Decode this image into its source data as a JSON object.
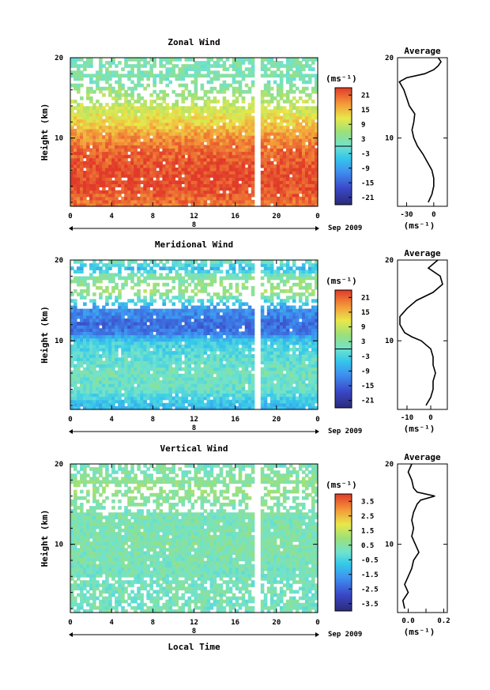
{
  "xlabel": "Local Time",
  "date_label": "Sep 2009",
  "day_label": "8",
  "cbar_units": "(ms⁻¹)",
  "avg_units": "(ms⁻¹)",
  "chart_data": [
    {
      "type": "heatmap",
      "title": "Zonal Wind",
      "ylabel": "Height (km)",
      "xlabel": "",
      "x_ticks": [
        "0",
        "4",
        "8",
        "12",
        "16",
        "20",
        "0"
      ],
      "xlim": [
        0,
        24
      ],
      "y_ticks": [
        "10",
        "20"
      ],
      "ylim": [
        1.5,
        20
      ],
      "colorbar": {
        "units": "(ms⁻¹)",
        "ticks": [
          "21",
          "15",
          "9",
          "3",
          "-3",
          "-9",
          "-15",
          "-21"
        ],
        "range": [
          -24,
          24
        ]
      },
      "profile_mean": [
        [
          2,
          20
        ],
        [
          4,
          23
        ],
        [
          6,
          23
        ],
        [
          8,
          21
        ],
        [
          10,
          18
        ],
        [
          12,
          13
        ],
        [
          14,
          9
        ],
        [
          16,
          5
        ],
        [
          17,
          2
        ]
      ],
      "average": {
        "title": "Average",
        "xlabel": "(ms⁻¹)",
        "x_ticks": [
          "-30",
          "0"
        ],
        "xlim": [
          -40,
          15
        ],
        "y_ticks": [
          "10",
          "20"
        ],
        "profile": [
          [
            -6,
            2
          ],
          [
            -2,
            3
          ],
          [
            0,
            4
          ],
          [
            0,
            5
          ],
          [
            -2,
            6
          ],
          [
            -7,
            7
          ],
          [
            -12,
            8
          ],
          [
            -18,
            9
          ],
          [
            -22,
            10
          ],
          [
            -24,
            11
          ],
          [
            -22,
            12
          ],
          [
            -21,
            13
          ],
          [
            -27,
            14
          ],
          [
            -30,
            15
          ],
          [
            -33,
            16
          ],
          [
            -38,
            17
          ],
          [
            -30,
            17.5
          ],
          [
            -10,
            18
          ],
          [
            0,
            18.5
          ],
          [
            5,
            19
          ],
          [
            8,
            19.5
          ],
          [
            5,
            20
          ]
        ]
      }
    },
    {
      "type": "heatmap",
      "title": "Meridional Wind",
      "ylabel": "Height (km)",
      "xlabel": "",
      "x_ticks": [
        "0",
        "4",
        "8",
        "12",
        "16",
        "20",
        "0"
      ],
      "xlim": [
        0,
        24
      ],
      "y_ticks": [
        "10",
        "20"
      ],
      "ylim": [
        1.5,
        20
      ],
      "colorbar": {
        "units": "(ms⁻¹)",
        "ticks": [
          "21",
          "15",
          "9",
          "3",
          "-3",
          "-9",
          "-15",
          "-21"
        ],
        "range": [
          -24,
          24
        ]
      },
      "profile_mean": [
        [
          2,
          -6
        ],
        [
          4,
          0
        ],
        [
          6,
          1
        ],
        [
          8,
          -1
        ],
        [
          10,
          -4
        ],
        [
          11,
          -12
        ],
        [
          12,
          -14
        ],
        [
          14,
          -10
        ],
        [
          16,
          6
        ],
        [
          18,
          3
        ],
        [
          19,
          -6
        ],
        [
          20,
          2
        ]
      ],
      "average": {
        "title": "Average",
        "xlabel": "(ms⁻¹)",
        "x_ticks": [
          "-10",
          "0"
        ],
        "xlim": [
          -14,
          7
        ],
        "y_ticks": [
          "10",
          "20"
        ],
        "profile": [
          [
            -2,
            2
          ],
          [
            0,
            3
          ],
          [
            1,
            4
          ],
          [
            1,
            5
          ],
          [
            2,
            6
          ],
          [
            1,
            7
          ],
          [
            1,
            8
          ],
          [
            0,
            9
          ],
          [
            -2,
            9.5
          ],
          [
            -4,
            10
          ],
          [
            -8,
            10.5
          ],
          [
            -11,
            11
          ],
          [
            -13,
            12
          ],
          [
            -13,
            13
          ],
          [
            -10,
            14
          ],
          [
            -6,
            15
          ],
          [
            1,
            16
          ],
          [
            5,
            17
          ],
          [
            4,
            18
          ],
          [
            -1,
            19
          ],
          [
            3,
            20
          ]
        ]
      }
    },
    {
      "type": "heatmap",
      "title": "Vertical Wind",
      "ylabel": "Height (km)",
      "xlabel": "Local Time",
      "x_ticks": [
        "0",
        "4",
        "8",
        "12",
        "16",
        "20",
        "0"
      ],
      "xlim": [
        0,
        24
      ],
      "y_ticks": [
        "10",
        "20"
      ],
      "ylim": [
        1.5,
        20
      ],
      "colorbar": {
        "units": "(ms⁻¹)",
        "ticks": [
          "3.5",
          "2.5",
          "1.5",
          "0.5",
          "-0.5",
          "-1.5",
          "-2.5",
          "-3.5"
        ],
        "range": [
          -4,
          4
        ]
      },
      "profile_mean": [
        [
          2,
          0.2
        ],
        [
          6,
          0.2
        ],
        [
          10,
          0.4
        ],
        [
          14,
          0.3
        ],
        [
          17,
          0.8
        ],
        [
          20,
          0.2
        ]
      ],
      "average": {
        "title": "Average",
        "xlabel": "(ms⁻¹)",
        "x_ticks": [
          "0.0",
          "0.2"
        ],
        "x_ticks_numeric": [
          0.0,
          0.2
        ],
        "extra_tick_numeric": 0.1,
        "xlim": [
          -0.06,
          0.22
        ],
        "y_ticks": [
          "10",
          "20"
        ],
        "profile": [
          [
            -0.02,
            2
          ],
          [
            -0.03,
            3
          ],
          [
            0.0,
            4
          ],
          [
            -0.02,
            5
          ],
          [
            0.0,
            6
          ],
          [
            0.02,
            7
          ],
          [
            0.03,
            8
          ],
          [
            0.06,
            9
          ],
          [
            0.04,
            10
          ],
          [
            0.02,
            11
          ],
          [
            0.03,
            12
          ],
          [
            0.02,
            13
          ],
          [
            0.03,
            14
          ],
          [
            0.05,
            15
          ],
          [
            0.07,
            15.5
          ],
          [
            0.15,
            16
          ],
          [
            0.05,
            16.5
          ],
          [
            0.03,
            17
          ],
          [
            0.02,
            18
          ],
          [
            0.0,
            19
          ],
          [
            0.02,
            20
          ]
        ]
      }
    }
  ]
}
